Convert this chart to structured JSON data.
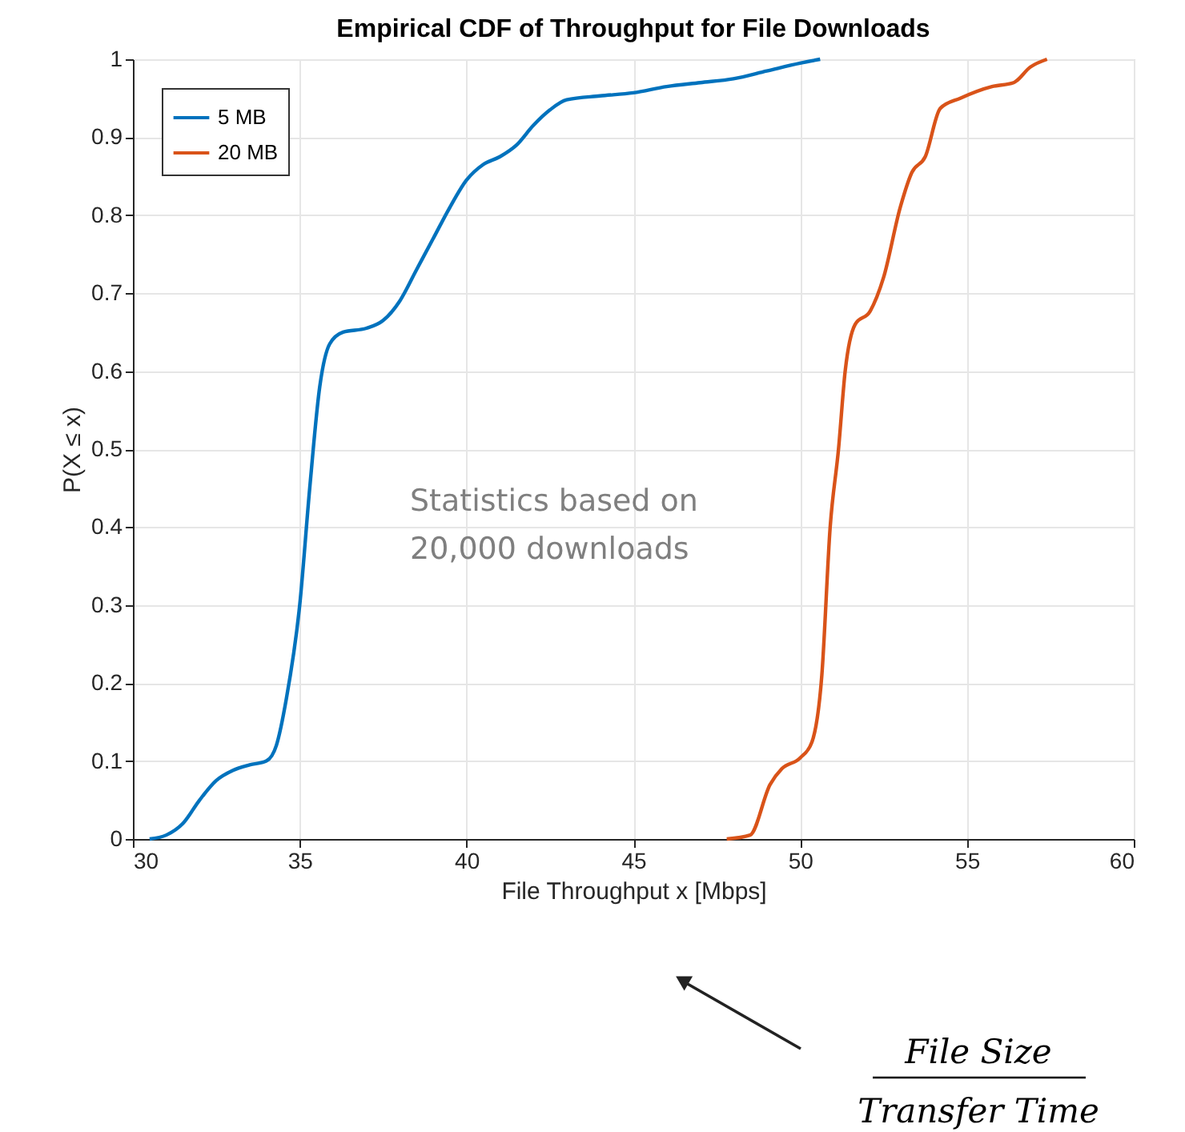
{
  "chart_data": {
    "type": "line",
    "title": "Empirical CDF of Throughput for File Downloads",
    "xlabel": "File Throughput x [Mbps]",
    "ylabel": "P(X ≤ x)",
    "xlim": [
      30,
      60
    ],
    "xticks": [
      30,
      35,
      40,
      45,
      50,
      55,
      60
    ],
    "ylim": [
      0,
      1
    ],
    "yticks": [
      0,
      0.1,
      0.2,
      0.3,
      0.4,
      0.5,
      0.6,
      0.7,
      0.8,
      0.9,
      1
    ],
    "grid": true,
    "legend": "top left",
    "line_style": "solid",
    "annotations": [
      "Statistics based on\n20,000 downloads",
      "File Size",
      "Transfer Time"
    ],
    "series": [
      {
        "name": "5 MB",
        "color": "#0072bd",
        "x": [
          30.5,
          31,
          31.5,
          32,
          32.5,
          33,
          33.5,
          34,
          34.3,
          34.6,
          35,
          35.3,
          35.6,
          35.9,
          36.3,
          37,
          37.5,
          38,
          38.5,
          39,
          39.5,
          40,
          40.5,
          41,
          41.5,
          42,
          42.5,
          43,
          44,
          45,
          46,
          47,
          48,
          49,
          50,
          50.6
        ],
        "values": [
          0,
          0.005,
          0.02,
          0.05,
          0.075,
          0.088,
          0.095,
          0.1,
          0.12,
          0.18,
          0.3,
          0.45,
          0.58,
          0.635,
          0.65,
          0.655,
          0.665,
          0.69,
          0.73,
          0.77,
          0.81,
          0.845,
          0.865,
          0.875,
          0.89,
          0.915,
          0.935,
          0.948,
          0.953,
          0.957,
          0.965,
          0.97,
          0.975,
          0.985,
          0.995,
          1
        ]
      },
      {
        "name": "20 MB",
        "color": "#d95319",
        "x": [
          47.8,
          48.5,
          49.1,
          49.45,
          50,
          50.35,
          50.65,
          50.9,
          51.15,
          51.35,
          51.65,
          52.1,
          52.5,
          53,
          53.35,
          53.75,
          54.2,
          54.8,
          55.75,
          56.4,
          56.9,
          57.4
        ],
        "values": [
          0,
          0.005,
          0.07,
          0.09,
          0.104,
          0.124,
          0.21,
          0.4,
          0.5,
          0.6,
          0.66,
          0.677,
          0.72,
          0.81,
          0.855,
          0.875,
          0.937,
          0.95,
          0.965,
          0.97,
          0.99,
          1
        ]
      }
    ]
  }
}
